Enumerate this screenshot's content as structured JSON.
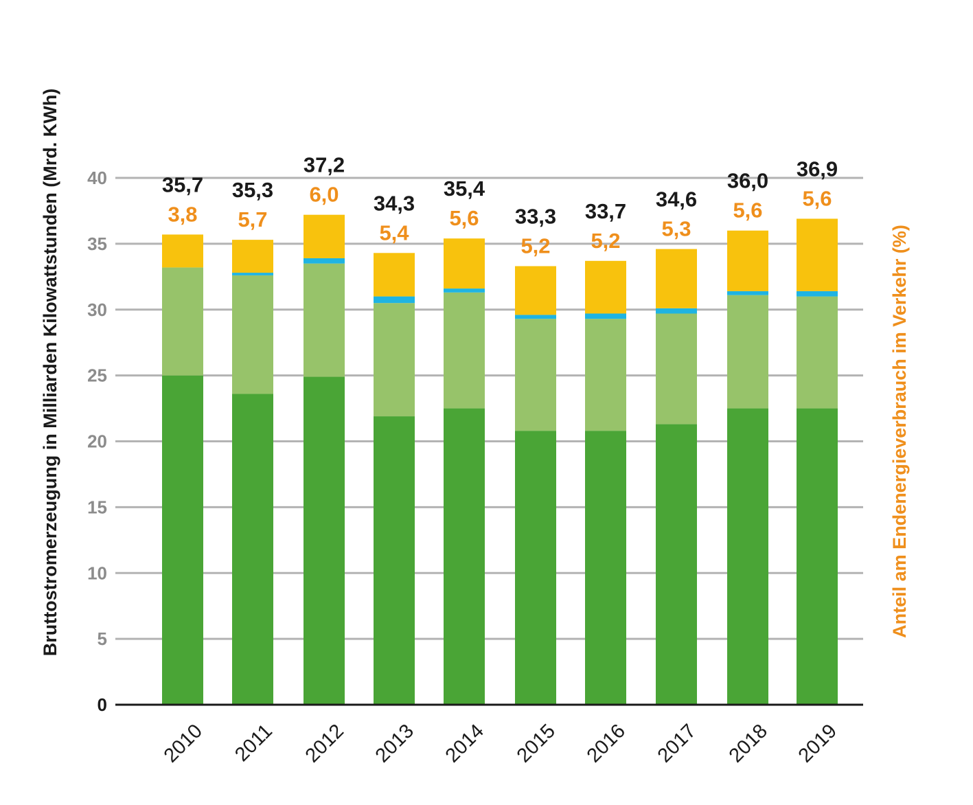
{
  "chart_data": {
    "type": "bar",
    "stacked": true,
    "categories": [
      "2010",
      "2011",
      "2012",
      "2013",
      "2014",
      "2015",
      "2016",
      "2017",
      "2018",
      "2019"
    ],
    "series": [
      {
        "values": [
          25.0,
          23.6,
          24.9,
          21.9,
          22.5,
          20.8,
          20.8,
          21.3,
          22.5,
          22.5
        ],
        "color": "#4aa536"
      },
      {
        "values": [
          8.2,
          9.0,
          8.6,
          8.6,
          8.8,
          8.5,
          8.5,
          8.4,
          8.6,
          8.5
        ],
        "color": "#97c36a"
      },
      {
        "values": [
          0.0,
          0.2,
          0.4,
          0.5,
          0.3,
          0.3,
          0.4,
          0.4,
          0.3,
          0.4
        ],
        "color": "#1fb4e2"
      },
      {
        "values": [
          2.5,
          2.5,
          3.3,
          3.3,
          3.8,
          3.7,
          4.0,
          4.5,
          4.6,
          5.5
        ],
        "color": "#f8c20d"
      }
    ],
    "total_labels": [
      "35,7",
      "35,3",
      "37,2",
      "34,3",
      "35,4",
      "33,3",
      "33,7",
      "34,6",
      "36,0",
      "36,9"
    ],
    "share_labels": [
      "3,8",
      "5,7",
      "6,0",
      "5,4",
      "5,6",
      "5,2",
      "5,2",
      "5,3",
      "5,6",
      "5,6"
    ],
    "ylabel": "Bruttostromerzeugung in Milliarden Kilowattstunden (Mrd. KWh)",
    "ylabel_right": "Anteil am Endenergieverbrauch im Verkehr (%)",
    "ylim": [
      0,
      40
    ],
    "yticks": [
      0,
      5,
      10,
      15,
      20,
      25,
      30,
      35,
      40
    ],
    "grid": true,
    "colors": {
      "grid": "#b3b3b3",
      "axis": "#1a1a1a",
      "share_label": "#ef8f1c",
      "total_label": "#1a1a1a"
    }
  }
}
